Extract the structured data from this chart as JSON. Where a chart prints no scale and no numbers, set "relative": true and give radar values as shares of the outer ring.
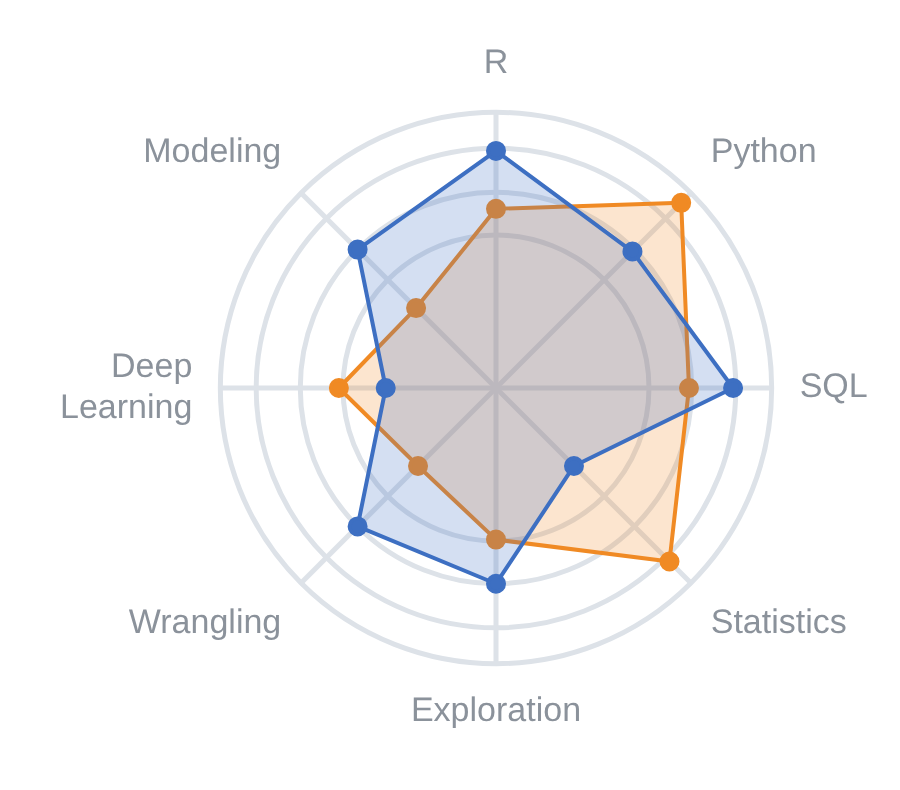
{
  "chart_data": {
    "type": "radar",
    "relative": true,
    "categories": [
      "R",
      "Python",
      "SQL",
      "Statistics",
      "Exploration",
      "Wrangling",
      "Deep Learning",
      "Modeling"
    ],
    "marker": "circle",
    "legend": false,
    "series": [
      {
        "color": "#3d6fc2",
        "values": [
          0.86,
          0.7,
          0.86,
          0.4,
          0.71,
          0.71,
          0.4,
          0.71
        ]
      },
      {
        "color": "#f08a24",
        "values": [
          0.65,
          0.95,
          0.7,
          0.89,
          0.55,
          0.4,
          0.57,
          0.41
        ]
      }
    ]
  }
}
